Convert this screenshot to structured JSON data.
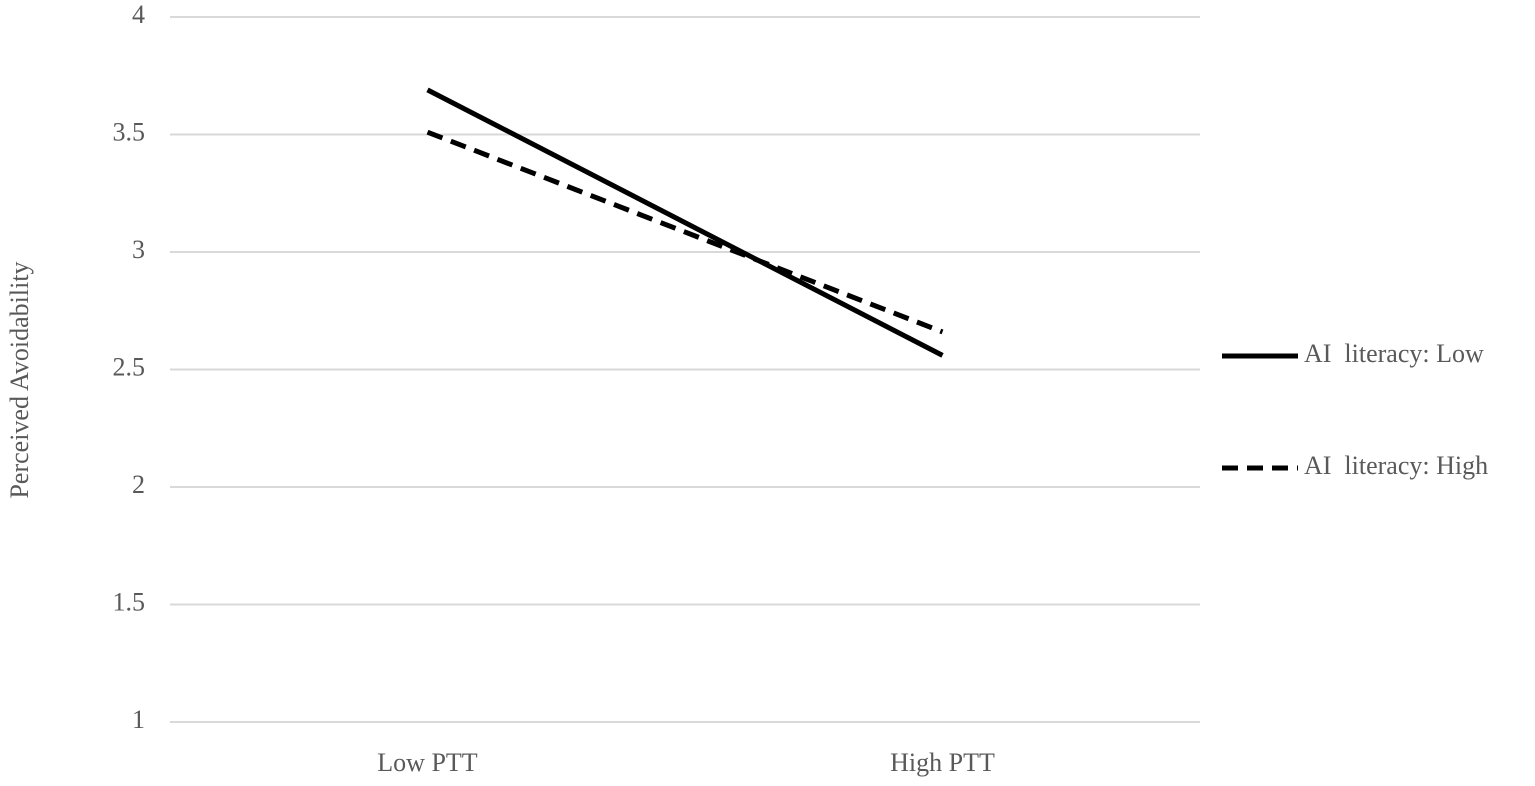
{
  "chart_data": {
    "type": "line",
    "y_label": "Perceived Avoidability",
    "categories": [
      "Low PTT",
      "High PTT"
    ],
    "series": [
      {
        "name": "AI  literacy: Low",
        "color": "#000000",
        "dash": "solid",
        "values": [
          3.69,
          2.56
        ]
      },
      {
        "name": "AI  literacy: High",
        "color": "#000000",
        "dash": "dashed",
        "values": [
          3.51,
          2.66
        ]
      }
    ],
    "ylim": [
      1,
      4
    ],
    "yticks": [
      1,
      1.5,
      2,
      2.5,
      3,
      3.5,
      4
    ],
    "grid": true,
    "legend": "right"
  }
}
